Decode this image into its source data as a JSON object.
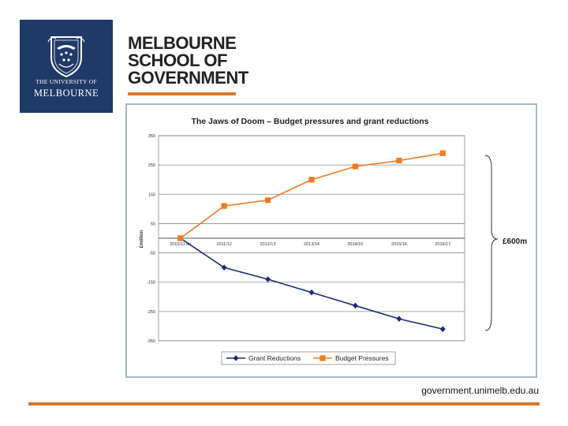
{
  "logo": {
    "uni_line1": "THE UNIVERSITY OF",
    "uni_line2": "MELBOURNE",
    "crest": "university-crest-icon",
    "background_color": "#1f3a68"
  },
  "school": {
    "lines": [
      "MELBOURNE",
      "SCHOOL OF",
      "GOVERNMENT"
    ],
    "accent_color": "#d8782a"
  },
  "footer": {
    "url": "government.unimelb.edu.au"
  },
  "chart_data": {
    "type": "line",
    "title": "The Jaws of Doom – Budget pressures and grant reductions",
    "ylabel": "£million",
    "xlabel": "",
    "categories": [
      "2010/11 Av",
      "2011/12",
      "2012/13",
      "2013/14",
      "2014/15",
      "2015/16",
      "2016/17"
    ],
    "ylim": [
      -350,
      350
    ],
    "yticks": [
      350,
      250,
      150,
      50,
      -50,
      -150,
      -250,
      -350
    ],
    "grid": true,
    "legend_position": "bottom",
    "series": [
      {
        "name": "Grant Reductions",
        "color": "#1b2a78",
        "marker": "diamond",
        "values": [
          0,
          -100,
          -140,
          -185,
          -230,
          -275,
          -310
        ]
      },
      {
        "name": "Budget Pressures",
        "color": "#ef7b23",
        "marker": "square",
        "values": [
          0,
          110,
          130,
          200,
          245,
          265,
          290
        ]
      }
    ],
    "annotation": "£600m"
  }
}
